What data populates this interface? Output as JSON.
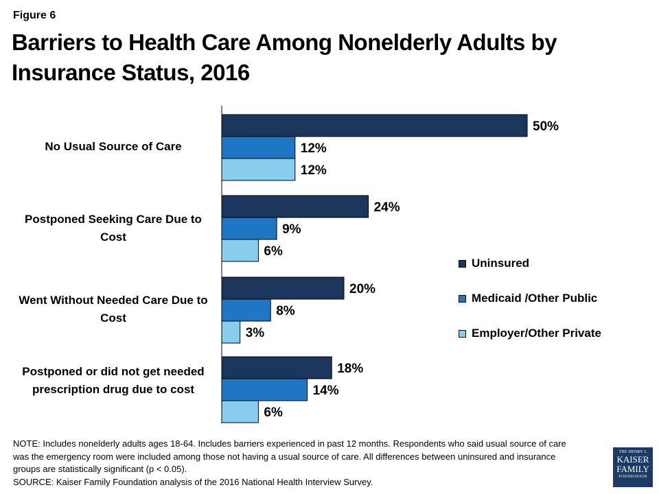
{
  "figure_label": "Figure 6",
  "title": "Barriers to Health Care Among Nonelderly Adults by Insurance Status, 2016",
  "colors": {
    "uninsured": "#1b365d",
    "medicaid": "#1f77c4",
    "employer": "#86cdee",
    "axis": "#000000"
  },
  "chart_data": {
    "type": "bar",
    "orientation": "horizontal",
    "title": "Barriers to Health Care Among Nonelderly Adults by Insurance Status, 2016",
    "categories": [
      "No Usual Source of Care",
      "Postponed Seeking Care Due to Cost",
      "Went Without Needed Care Due to Cost",
      "Postponed or did not get needed prescription drug due to cost"
    ],
    "series": [
      {
        "name": "Uninsured",
        "values": [
          50,
          24,
          20,
          18
        ],
        "labels": [
          "50%",
          "24%",
          "20%",
          "18%"
        ]
      },
      {
        "name": "Medicaid /Other Public",
        "values": [
          12,
          9,
          8,
          14
        ],
        "labels": [
          "12%",
          "9%",
          "8%",
          "14%"
        ]
      },
      {
        "name": "Employer/Other Private",
        "values": [
          12,
          6,
          3,
          6
        ],
        "labels": [
          "12%",
          "6%",
          "3%",
          "6%"
        ]
      }
    ],
    "xlim": [
      0,
      60
    ],
    "xlabel": "",
    "ylabel": "",
    "legend_position": "right",
    "grid": false
  },
  "note": "NOTE: Includes nonelderly adults ages 18-64. Includes barriers experienced in past 12 months.  Respondents who said usual source of care was the emergency room  were included among those not having a usual source of care. All differences between uninsured and insurance groups are statistically significant (p < 0.05).",
  "source": "SOURCE: Kaiser Family Foundation analysis of the 2016 National Health Interview Survey.",
  "logo": {
    "line1": "THE HENRY J.",
    "line2": "KAISER",
    "line3": "FAMILY",
    "line4": "FOUNDATION"
  }
}
